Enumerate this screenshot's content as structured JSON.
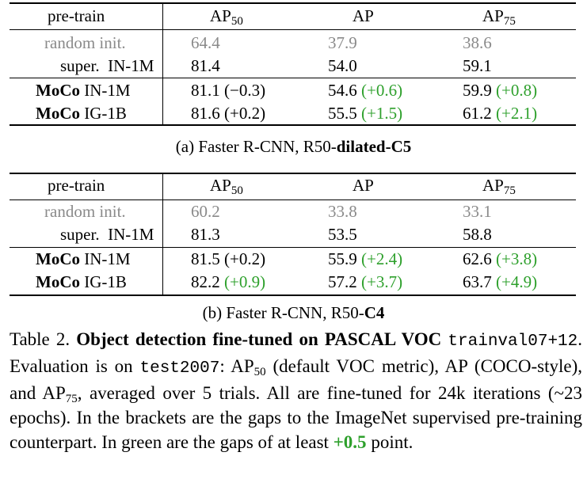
{
  "headers": {
    "pretrain": "pre-train",
    "ap50_base": "AP",
    "ap50_sub": "50",
    "ap": "AP",
    "ap75_base": "AP",
    "ap75_sub": "75"
  },
  "table_a": {
    "caption_prefix": "(a) Faster R-CNN, R50-",
    "caption_bold": "dilated-C5",
    "rows": [
      {
        "model_bold": "",
        "model": "random init.",
        "ap50": "64.4",
        "ap50_gap": "",
        "ap": "37.9",
        "ap_gap": "",
        "ap75": "38.6",
        "ap75_gap": ""
      },
      {
        "model_bold": "",
        "model": "super.  IN-1M",
        "ap50": "81.4",
        "ap50_gap": "",
        "ap": "54.0",
        "ap_gap": "",
        "ap75": "59.1",
        "ap75_gap": ""
      },
      {
        "model_bold": "MoCo",
        "model": "IN-1M",
        "ap50": "81.1",
        "ap50_gap": "(−0.3)",
        "ap": "54.6",
        "ap_gap": "(+0.6)",
        "ap75": "59.9",
        "ap75_gap": "(+0.8)"
      },
      {
        "model_bold": "MoCo",
        "model": "IG-1B",
        "ap50": "81.6",
        "ap50_gap": "(+0.2)",
        "ap": "55.5",
        "ap_gap": "(+1.5)",
        "ap75": "61.2",
        "ap75_gap": "(+2.1)"
      }
    ]
  },
  "table_b": {
    "caption_prefix": "(b) Faster R-CNN, R50-",
    "caption_bold": "C4",
    "rows": [
      {
        "model_bold": "",
        "model": "random init.",
        "ap50": "60.2",
        "ap50_gap": "",
        "ap": "33.8",
        "ap_gap": "",
        "ap75": "33.1",
        "ap75_gap": ""
      },
      {
        "model_bold": "",
        "model": "super.  IN-1M",
        "ap50": "81.3",
        "ap50_gap": "",
        "ap": "53.5",
        "ap_gap": "",
        "ap75": "58.8",
        "ap75_gap": ""
      },
      {
        "model_bold": "MoCo",
        "model": "IN-1M",
        "ap50": "81.5",
        "ap50_gap": "(+0.2)",
        "ap": "55.9",
        "ap_gap": "(+2.4)",
        "ap75": "62.6",
        "ap75_gap": "(+3.8)"
      },
      {
        "model_bold": "MoCo",
        "model": "IG-1B",
        "ap50": "82.2",
        "ap50_gap": "(+0.9)",
        "ap": "57.2",
        "ap_gap": "(+3.7)",
        "ap75": "63.7",
        "ap75_gap": "(+4.9)"
      }
    ]
  },
  "table_caption": {
    "label": "Table 2.",
    "title": "Object detection fine-tuned on PASCAL VOC",
    "code1": "trainval07+12",
    "text1": ". Evaluation is on ",
    "code2": "test2007",
    "text2": ": AP",
    "sub50": "50",
    "text3": " (default VOC metric), AP (COCO-style), and AP",
    "sub75": "75",
    "text4": ", averaged over 5 trials. All are fine-tuned for 24k iterations (~23 epochs). In the brackets are the gaps to the ImageNet supervised pre-training counterpart. In green are the gaps of at least ",
    "green_value": "+0.5",
    "text5": " point."
  },
  "colors": {
    "green": "#2ea02c",
    "gray": "#8a8a8a"
  }
}
